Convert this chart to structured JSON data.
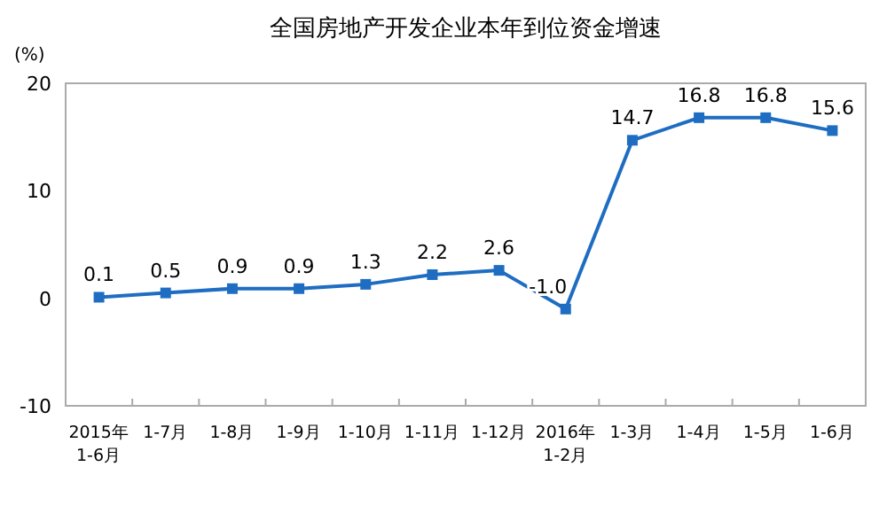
{
  "chart_data": {
    "type": "line",
    "title": "全国房地产开发企业本年到位资金增速",
    "ylabel": "(%)",
    "categories": [
      "2015年\n1-6月",
      "1-7月",
      "1-8月",
      "1-9月",
      "1-10月",
      "1-11月",
      "1-12月",
      "2016年\n1-2月",
      "1-3月",
      "1-4月",
      "1-5月",
      "1-6月"
    ],
    "series": [
      {
        "color": "#1f6dc2",
        "values": [
          0.1,
          0.5,
          0.9,
          0.9,
          1.3,
          2.2,
          2.6,
          -1.0,
          14.7,
          16.8,
          16.8,
          15.6
        ]
      }
    ],
    "value_labels": [
      "0.1",
      "0.5",
      "0.9",
      "0.9",
      "1.3",
      "2.2",
      "2.6",
      "-1.0",
      "14.7",
      "16.8",
      "16.8",
      "15.6"
    ],
    "ylim": [
      -10,
      20
    ],
    "yticks": [
      -10,
      0,
      10,
      20
    ],
    "marker": "square",
    "grid": false
  }
}
